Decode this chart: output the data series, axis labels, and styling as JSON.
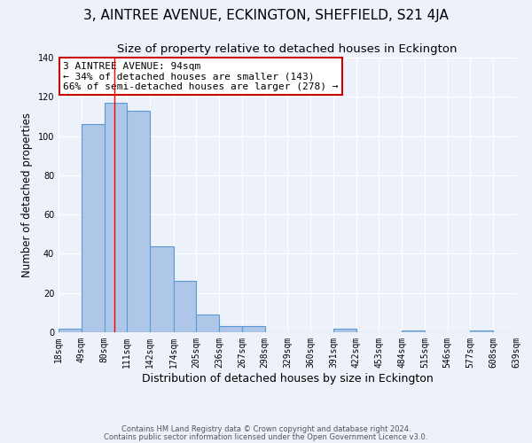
{
  "title": "3, AINTREE AVENUE, ECKINGTON, SHEFFIELD, S21 4JA",
  "subtitle": "Size of property relative to detached houses in Eckington",
  "xlabel": "Distribution of detached houses by size in Eckington",
  "ylabel": "Number of detached properties",
  "bin_edges": [
    18,
    49,
    80,
    111,
    142,
    174,
    205,
    236,
    267,
    298,
    329,
    360,
    391,
    422,
    453,
    484,
    515,
    546,
    577,
    608,
    639
  ],
  "bar_heights": [
    2,
    106,
    117,
    113,
    44,
    26,
    9,
    3,
    3,
    0,
    0,
    0,
    2,
    0,
    0,
    1,
    0,
    0,
    1,
    0
  ],
  "bar_color": "#aec6e8",
  "bar_edge_color": "#5b9bd5",
  "reference_line_x": 94,
  "ylim": [
    0,
    140
  ],
  "annotation_title": "3 AINTREE AVENUE: 94sqm",
  "annotation_line1": "← 34% of detached houses are smaller (143)",
  "annotation_line2": "66% of semi-detached houses are larger (278) →",
  "annotation_box_color": "#ffffff",
  "annotation_box_edge_color": "#cc0000",
  "footer_line1": "Contains HM Land Registry data © Crown copyright and database right 2024.",
  "footer_line2": "Contains public sector information licensed under the Open Government Licence v3.0.",
  "bg_color": "#edf2fa",
  "grid_color": "#ffffff",
  "title_fontsize": 11,
  "subtitle_fontsize": 9.5,
  "xlabel_fontsize": 9,
  "ylabel_fontsize": 8.5,
  "tick_fontsize": 7,
  "annotation_fontsize": 8,
  "footer_fontsize": 6,
  "tick_labels": [
    "18sqm",
    "49sqm",
    "80sqm",
    "111sqm",
    "142sqm",
    "174sqm",
    "205sqm",
    "236sqm",
    "267sqm",
    "298sqm",
    "329sqm",
    "360sqm",
    "391sqm",
    "422sqm",
    "453sqm",
    "484sqm",
    "515sqm",
    "546sqm",
    "577sqm",
    "608sqm",
    "639sqm"
  ]
}
